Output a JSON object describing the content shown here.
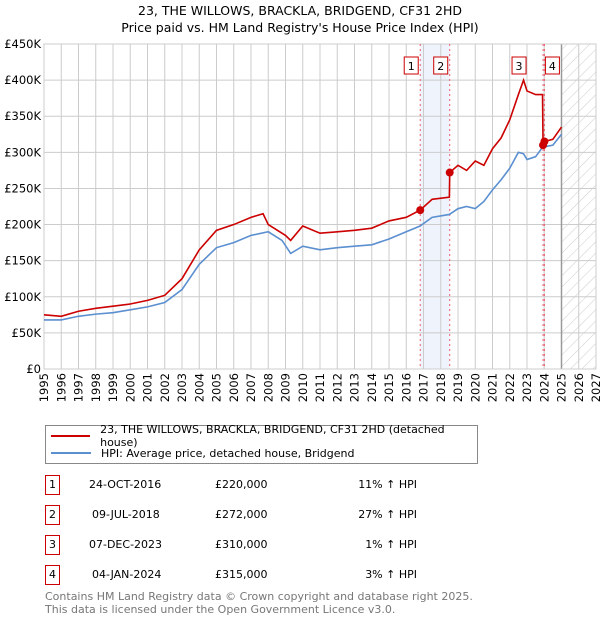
{
  "title": [
    "23, THE WILLOWS, BRACKLA, BRIDGEND, CF31 2HD",
    "Price paid vs. HM Land Registry's House Price Index (HPI)"
  ],
  "chart_data": {
    "type": "line",
    "title": "23, THE WILLOWS, BRACKLA, BRIDGEND, CF31 2HD — Price paid vs. HM Land Registry's House Price Index (HPI)",
    "xlim": [
      1995,
      2027
    ],
    "ylim": [
      0,
      450000
    ],
    "x_ticks": [
      "1995",
      "1996",
      "1997",
      "1998",
      "1999",
      "2000",
      "2001",
      "2002",
      "2003",
      "2004",
      "2005",
      "2006",
      "2007",
      "2008",
      "2009",
      "2010",
      "2011",
      "2012",
      "2013",
      "2014",
      "2015",
      "2016",
      "2017",
      "2018",
      "2019",
      "2020",
      "2021",
      "2022",
      "2023",
      "2024",
      "2025",
      "2026",
      "2027"
    ],
    "y_ticks": [
      {
        "v": 0,
        "l": "£0"
      },
      {
        "v": 50000,
        "l": "£50K"
      },
      {
        "v": 100000,
        "l": "£100K"
      },
      {
        "v": 150000,
        "l": "£150K"
      },
      {
        "v": 200000,
        "l": "£200K"
      },
      {
        "v": 250000,
        "l": "£250K"
      },
      {
        "v": 300000,
        "l": "£300K"
      },
      {
        "v": 350000,
        "l": "£350K"
      },
      {
        "v": 400000,
        "l": "£400K"
      },
      {
        "v": 450000,
        "l": "£450K"
      }
    ],
    "forecast_start": 2025,
    "series": [
      {
        "name": "23, THE WILLOWS, BRACKLA, BRIDGEND, CF31 2HD (detached house)",
        "color": "#cc0000",
        "x": [
          1995,
          1996,
          1997,
          1998,
          1999,
          2000,
          2001,
          2002,
          2003,
          2004,
          2005,
          2006,
          2007,
          2007.7,
          2008,
          2009,
          2009.3,
          2010,
          2011,
          2012,
          2013,
          2014,
          2015,
          2016,
          2016.81,
          2017.5,
          2018.5,
          2018.52,
          2019,
          2019.5,
          2020,
          2020.5,
          2021,
          2021.5,
          2022,
          2022.5,
          2022.8,
          2023,
          2023.5,
          2023.9,
          2023.93,
          2024.01,
          2024.5,
          2025
        ],
        "y": [
          75000,
          73000,
          80000,
          84000,
          87000,
          90000,
          95000,
          102000,
          125000,
          165000,
          192000,
          200000,
          210000,
          215000,
          200000,
          185000,
          178000,
          198000,
          188000,
          190000,
          192000,
          195000,
          205000,
          210000,
          220000,
          235000,
          238000,
          272000,
          282000,
          275000,
          288000,
          282000,
          305000,
          320000,
          345000,
          380000,
          400000,
          385000,
          380000,
          380000,
          310000,
          315000,
          318000,
          335000
        ]
      },
      {
        "name": "HPI: Average price, detached house, Bridgend",
        "color": "#5b8fd0",
        "x": [
          1995,
          1996,
          1997,
          1998,
          1999,
          2000,
          2001,
          2002,
          2003,
          2004,
          2005,
          2006,
          2007,
          2008,
          2008.8,
          2009.3,
          2010,
          2011,
          2012,
          2013,
          2014,
          2015,
          2016,
          2016.8,
          2017.5,
          2018.5,
          2019,
          2019.5,
          2020,
          2020.5,
          2021,
          2021.5,
          2022,
          2022.5,
          2022.8,
          2023,
          2023.5,
          2023.9,
          2024.5,
          2025
        ],
        "y": [
          68000,
          68000,
          73000,
          76000,
          78000,
          82000,
          86000,
          92000,
          110000,
          145000,
          168000,
          175000,
          185000,
          190000,
          178000,
          160000,
          170000,
          165000,
          168000,
          170000,
          172000,
          180000,
          190000,
          198000,
          210000,
          214000,
          222000,
          225000,
          222000,
          232000,
          248000,
          262000,
          278000,
          300000,
          298000,
          290000,
          294000,
          307000,
          310000,
          325000
        ]
      }
    ],
    "transactions": [
      {
        "id": "1",
        "date": "24-OCT-2016",
        "x": 2016.81,
        "price": "£220,000",
        "value": 220000,
        "hpi": "11% ↑ HPI"
      },
      {
        "id": "2",
        "date": "09-JUL-2018",
        "x": 2018.52,
        "price": "£272,000",
        "value": 272000,
        "hpi": "27% ↑ HPI"
      },
      {
        "id": "3",
        "date": "07-DEC-2023",
        "x": 2023.93,
        "price": "£310,000",
        "value": 310000,
        "hpi": "1% ↑ HPI"
      },
      {
        "id": "4",
        "date": "04-JAN-2024",
        "x": 2024.01,
        "price": "£315,000",
        "value": 315000,
        "hpi": "3% ↑ HPI"
      }
    ],
    "legend": "bottom"
  },
  "footer": [
    "Contains HM Land Registry data © Crown copyright and database right 2025.",
    "This data is licensed under the Open Government Licence v3.0."
  ]
}
